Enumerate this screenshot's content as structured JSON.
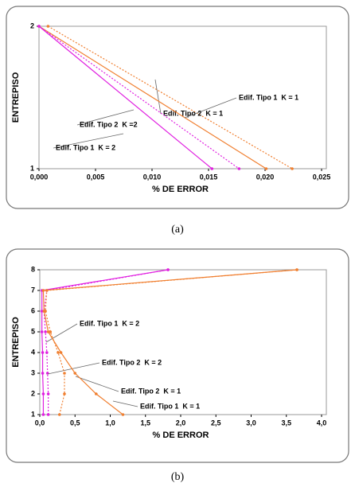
{
  "chart_data": [
    {
      "type": "line",
      "orientation": "horizontal",
      "caption": "(a)",
      "xlabel": "% DE ERROR",
      "ylabel": "ENTREPISO",
      "y": [
        2,
        1
      ],
      "xlim": [
        0,
        0.025
      ],
      "xticks": [
        {
          "value": 0,
          "label": "0,000"
        },
        {
          "value": 0.005,
          "label": "0,005"
        },
        {
          "value": 0.01,
          "label": "0,010"
        },
        {
          "value": 0.015,
          "label": "0,015"
        },
        {
          "value": 0.02,
          "label": "0,020"
        },
        {
          "value": 0.025,
          "label": "0,025"
        }
      ],
      "ylim": [
        1,
        2
      ],
      "yticks": [
        1,
        2
      ],
      "series": [
        {
          "name": "Edif. Tipo 2  K = 1",
          "color": "#f07f30",
          "line_style": "dotted",
          "values": [
            0.0008,
            0.0224
          ]
        },
        {
          "name": "Edif. Tipo 1  K = 1",
          "color": "#f07f30",
          "line_style": "solid",
          "values": [
            0,
            0.0201
          ]
        },
        {
          "name": "Edif. Tipo 2  K =2",
          "color": "#e020e0",
          "line_style": "dotted",
          "values": [
            0,
            0.0177
          ]
        },
        {
          "name": "Edif. Tipo 1  K = 2",
          "color": "#e020e0",
          "line_style": "solid",
          "values": [
            0,
            0.0153
          ]
        }
      ]
    },
    {
      "type": "line",
      "orientation": "horizontal",
      "caption": "(b)",
      "xlabel": "% DE ERROR",
      "ylabel": "ENTREPISO",
      "y": [
        1,
        2,
        3,
        4,
        5,
        6,
        7,
        8
      ],
      "xlim": [
        0,
        4
      ],
      "xticks": [
        {
          "value": 0,
          "label": "0,0"
        },
        {
          "value": 0.5,
          "label": "0,5"
        },
        {
          "value": 1,
          "label": "1,0"
        },
        {
          "value": 1.5,
          "label": "1,5"
        },
        {
          "value": 2,
          "label": "2,0"
        },
        {
          "value": 2.5,
          "label": "2,5"
        },
        {
          "value": 3,
          "label": "3,0"
        },
        {
          "value": 3.5,
          "label": "3,5"
        },
        {
          "value": 4,
          "label": "4,0"
        }
      ],
      "ylim": [
        1,
        8
      ],
      "yticks": [
        1,
        2,
        3,
        4,
        5,
        6,
        7,
        8
      ],
      "series": [
        {
          "name": "Edif. Tipo 1  K = 2",
          "color": "#e020e0",
          "line_style": "solid",
          "values": [
            0.05,
            0.05,
            0.04,
            0.04,
            0.03,
            0.03,
            0.03,
            1.82
          ]
        },
        {
          "name": "Edif. Tipo 2  K = 2",
          "color": "#e020e0",
          "line_style": "dotted",
          "values": [
            0.12,
            0.12,
            0.11,
            0.1,
            0.08,
            0.06,
            0.1,
            1.82
          ]
        },
        {
          "name": "Edif. Tipo 2  K = 1",
          "color": "#f07f30",
          "line_style": "dotted",
          "values": [
            0.28,
            0.35,
            0.35,
            0.26,
            0.15,
            0.08,
            0.1,
            3.65
          ]
        },
        {
          "name": "Edif. Tipo 1  K = 1",
          "color": "#f07f30",
          "line_style": "solid",
          "values": [
            1.18,
            0.8,
            0.5,
            0.3,
            0.12,
            0.06,
            0.05,
            3.65
          ]
        }
      ]
    }
  ]
}
